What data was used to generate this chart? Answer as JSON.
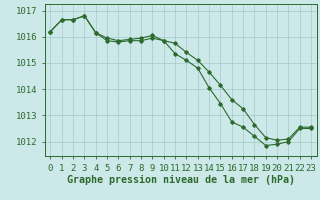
{
  "title": "Graphe pression niveau de la mer (hPa)",
  "background_color": "#cce8e8",
  "grid_color": "#aacece",
  "line_color": "#2d6a2d",
  "x_values": [
    0,
    1,
    2,
    3,
    4,
    5,
    6,
    7,
    8,
    9,
    10,
    11,
    12,
    13,
    14,
    15,
    16,
    17,
    18,
    19,
    20,
    21,
    22,
    23
  ],
  "series1": [
    1016.2,
    1016.65,
    1016.65,
    1016.8,
    1016.15,
    1015.95,
    1015.85,
    1015.9,
    1015.95,
    1016.05,
    1015.85,
    1015.75,
    1015.4,
    1015.1,
    1014.65,
    1014.15,
    1013.6,
    1013.25,
    1012.65,
    1012.15,
    1012.05,
    1012.1,
    1012.55,
    1012.55
  ],
  "series2": [
    1016.2,
    1016.65,
    1016.65,
    1016.8,
    1016.15,
    1015.85,
    1015.8,
    1015.85,
    1015.85,
    1015.95,
    1015.85,
    1015.35,
    1015.1,
    1014.8,
    1014.05,
    1013.45,
    1012.75,
    1012.55,
    1012.2,
    1011.85,
    1011.9,
    1012.0,
    1012.5,
    1012.5
  ],
  "ylim_min": 1011.45,
  "ylim_max": 1017.25,
  "ytick_values": [
    1012,
    1013,
    1014,
    1015,
    1016,
    1017
  ],
  "tick_fontsize": 6.5,
  "title_fontsize": 7.2
}
